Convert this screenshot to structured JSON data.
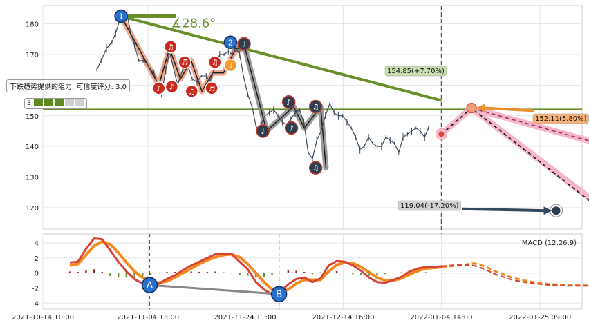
{
  "chart_data": [
    {
      "type": "line",
      "name": "price",
      "yticks": [
        120,
        130,
        140,
        150,
        160,
        170,
        180
      ],
      "ylim": [
        113,
        186
      ],
      "xlim": [
        0,
        100
      ],
      "grid": true,
      "price_series": [
        [
          10.0,
          165
        ],
        [
          10.8,
          168
        ],
        [
          11.8,
          172
        ],
        [
          12.8,
          174
        ],
        [
          13.5,
          177
        ],
        [
          14.2,
          181
        ],
        [
          14.9,
          183
        ],
        [
          15.6,
          183
        ],
        [
          16.3,
          177
        ],
        [
          17,
          173
        ],
        [
          17.8,
          168
        ],
        [
          18.6,
          168
        ],
        [
          19.3,
          167
        ],
        [
          20,
          165
        ],
        [
          20.6,
          164
        ],
        [
          21.3,
          160
        ],
        [
          22,
          157
        ],
        [
          22.8,
          165
        ],
        [
          23.5,
          171
        ],
        [
          24.3,
          165
        ],
        [
          25,
          160
        ],
        [
          25.9,
          165
        ],
        [
          26.8,
          167
        ],
        [
          27.7,
          162
        ],
        [
          28.6,
          161
        ],
        [
          29.4,
          163
        ],
        [
          30.3,
          163
        ],
        [
          31,
          161
        ],
        [
          31.9,
          166
        ],
        [
          32.8,
          170
        ],
        [
          33.6,
          170
        ],
        [
          34.4,
          171
        ],
        [
          35.1,
          170
        ],
        [
          35.8,
          172
        ],
        [
          36.5,
          170
        ],
        [
          37.2,
          163
        ],
        [
          38,
          157
        ],
        [
          38.8,
          153
        ],
        [
          39.6,
          146
        ],
        [
          40.4,
          147
        ],
        [
          41.2,
          150
        ],
        [
          42,
          151
        ],
        [
          42.8,
          152
        ],
        [
          43.6,
          150
        ],
        [
          44.4,
          148
        ],
        [
          45.2,
          147
        ],
        [
          46,
          149
        ],
        [
          46.8,
          151
        ],
        [
          47.6,
          152
        ],
        [
          48.4,
          148
        ],
        [
          49.2,
          138
        ],
        [
          50,
          136
        ],
        [
          50.8,
          142
        ],
        [
          51.6,
          145
        ],
        [
          52.4,
          150
        ],
        [
          53.2,
          154
        ],
        [
          54,
          151
        ],
        [
          54.8,
          150
        ],
        [
          55.6,
          150
        ],
        [
          56.4,
          148
        ],
        [
          57.2,
          146
        ],
        [
          58,
          143
        ],
        [
          58.8,
          139
        ],
        [
          59.6,
          140
        ],
        [
          60.4,
          143
        ],
        [
          61.2,
          141
        ],
        [
          62,
          140
        ],
        [
          62.8,
          140
        ],
        [
          63.6,
          143
        ],
        [
          64.4,
          142
        ],
        [
          65.2,
          141
        ],
        [
          66,
          138
        ],
        [
          66.8,
          143
        ],
        [
          67.6,
          144
        ],
        [
          68.4,
          145
        ],
        [
          69.2,
          146
        ],
        [
          70,
          145
        ],
        [
          70.8,
          143
        ],
        [
          71.5,
          146
        ]
      ],
      "xtick_labels": [
        "2021-10-14 10:00",
        "2021-11-04 13:00",
        "2021-11-24 11:00",
        "2021-12-14 16:00",
        "2022-01-04 14:00",
        "2022-01-25 09:00"
      ],
      "xtick_pos": [
        0,
        19.5,
        37.5,
        55.7,
        73.9,
        92.2
      ],
      "support_level": 152.11,
      "support_label": "152.11(5.80%)",
      "target_high": 154.85,
      "target_high_label": "154.85(+7.70%)",
      "target_low": 119.04,
      "target_low_label": "119.04(-17.20%)",
      "trend_angle_label": "∡28.6°",
      "resistance_label": "下跌趋势提供的阻力: 可信度评分: 3.0",
      "confidence_score": "3",
      "confidence_filled": 3,
      "confidence_total": 5,
      "trend_line": [
        [
          14.5,
          182.5
        ],
        [
          73.9,
          155
        ]
      ],
      "projection_dashed": [
        [
          73.9,
          144
        ],
        [
          79.5,
          152.5
        ],
        [
          103,
          120
        ]
      ],
      "projection_upper": [
        [
          79.5,
          152.5
        ],
        [
          103,
          141
        ]
      ],
      "projection_lower": [
        [
          79.5,
          152.5
        ],
        [
          103,
          121
        ]
      ],
      "pattern_lines": [
        {
          "color": "#e8967a",
          "points": [
            [
              14.5,
              182.5
            ],
            [
              21.5,
              160
            ],
            [
              23.5,
              172
            ],
            [
              25.5,
              162
            ],
            [
              27.5,
              168
            ],
            [
              29.5,
              158
            ],
            [
              31.5,
              164
            ],
            [
              33.5,
              164
            ],
            [
              35.5,
              171
            ],
            [
              37.5,
              172
            ]
          ]
        },
        {
          "color": "#8a8a8a",
          "points": [
            [
              35.5,
              172
            ],
            [
              37.5,
              172
            ],
            [
              41.5,
              145
            ],
            [
              46.5,
              153
            ],
            [
              48.5,
              146
            ],
            [
              51.5,
              153
            ],
            [
              52.5,
              133
            ]
          ]
        }
      ],
      "markers": [
        {
          "label": "1",
          "x": 14.5,
          "y": 182.5,
          "kind": "blue"
        },
        {
          "label": "2",
          "x": 34.8,
          "y": 174,
          "kind": "blue"
        },
        {
          "label": "♩",
          "x": 37.3,
          "y": 173.5,
          "kind": "dark"
        },
        {
          "label": "♪",
          "x": 21.5,
          "y": 159,
          "kind": "red"
        },
        {
          "label": "♫",
          "x": 23.7,
          "y": 172.5,
          "kind": "red"
        },
        {
          "label": "♪",
          "x": 23.9,
          "y": 159.5,
          "kind": "red"
        },
        {
          "label": "♬",
          "x": 26.3,
          "y": 167.5,
          "kind": "red"
        },
        {
          "label": "♫",
          "x": 27.6,
          "y": 158,
          "kind": "red"
        },
        {
          "label": "♬",
          "x": 31.3,
          "y": 159,
          "kind": "red"
        },
        {
          "label": "♫",
          "x": 31.9,
          "y": 167.5,
          "kind": "red"
        },
        {
          "label": "♩",
          "x": 34.8,
          "y": 166.5,
          "kind": "orange"
        },
        {
          "label": "♩",
          "x": 40.8,
          "y": 145,
          "kind": "dark"
        },
        {
          "label": "♪",
          "x": 45.6,
          "y": 154.5,
          "kind": "dark"
        },
        {
          "label": "♪",
          "x": 46.1,
          "y": 146,
          "kind": "dark"
        },
        {
          "label": "♫",
          "x": 50.6,
          "y": 153,
          "kind": "dark"
        },
        {
          "label": "♫",
          "x": 50.6,
          "y": 133,
          "kind": "dark"
        }
      ]
    },
    {
      "type": "line",
      "name": "macd",
      "label": "MACD (12,26,9)",
      "yticks": [
        -4,
        -2,
        0,
        2,
        4
      ],
      "ylim": [
        -4.8,
        5.2
      ],
      "xlim": [
        0,
        100
      ],
      "macd_line": [
        [
          5,
          1.4
        ],
        [
          6.5,
          1.5
        ],
        [
          8,
          3.2
        ],
        [
          9.5,
          4.6
        ],
        [
          11,
          4.5
        ],
        [
          12.5,
          3.0
        ],
        [
          14,
          1.5
        ],
        [
          15.5,
          0.2
        ],
        [
          17,
          -0.8
        ],
        [
          18.5,
          -1.4
        ],
        [
          20,
          -1.6
        ],
        [
          21.5,
          -1.4
        ],
        [
          23,
          -0.8
        ],
        [
          24.5,
          -0.3
        ],
        [
          26,
          0.4
        ],
        [
          27.5,
          1.0
        ],
        [
          29,
          1.5
        ],
        [
          30.5,
          2.0
        ],
        [
          32,
          2.5
        ],
        [
          33.5,
          2.6
        ],
        [
          35,
          2.5
        ],
        [
          36.5,
          1.5
        ],
        [
          38,
          0.5
        ],
        [
          39.5,
          -1.2
        ],
        [
          41,
          -2.2
        ],
        [
          42.5,
          -2.8
        ],
        [
          44,
          -2.5
        ],
        [
          45.5,
          -1.5
        ],
        [
          47,
          -0.8
        ],
        [
          48.5,
          -0.6
        ],
        [
          50,
          -1.2
        ],
        [
          51.5,
          -0.7
        ],
        [
          53,
          1.0
        ],
        [
          54.5,
          1.6
        ],
        [
          56,
          1.5
        ],
        [
          57.5,
          1.0
        ],
        [
          59,
          0.3
        ],
        [
          60.5,
          -0.6
        ],
        [
          62,
          -1.2
        ],
        [
          63.5,
          -1.3
        ],
        [
          65,
          -0.9
        ],
        [
          66.5,
          -0.5
        ],
        [
          68,
          0.2
        ],
        [
          69.5,
          0.6
        ],
        [
          71,
          0.8
        ],
        [
          72.5,
          0.8
        ],
        [
          74,
          0.9
        ]
      ],
      "signal_line": [
        [
          5,
          1.0
        ],
        [
          6.5,
          1.2
        ],
        [
          8,
          2.4
        ],
        [
          9.5,
          3.6
        ],
        [
          11,
          4.2
        ],
        [
          12.5,
          3.8
        ],
        [
          14,
          2.7
        ],
        [
          15.5,
          1.4
        ],
        [
          17,
          0.2
        ],
        [
          18.5,
          -0.6
        ],
        [
          20,
          -1.1
        ],
        [
          21.5,
          -1.3
        ],
        [
          23,
          -1.1
        ],
        [
          24.5,
          -0.6
        ],
        [
          26,
          0.0
        ],
        [
          27.5,
          0.6
        ],
        [
          29,
          1.2
        ],
        [
          30.5,
          1.7
        ],
        [
          32,
          2.1
        ],
        [
          33.5,
          2.4
        ],
        [
          35,
          2.5
        ],
        [
          36.5,
          2.1
        ],
        [
          38,
          1.2
        ],
        [
          39.5,
          0.0
        ],
        [
          41,
          -1.2
        ],
        [
          42.5,
          -2.2
        ],
        [
          44,
          -2.6
        ],
        [
          45.5,
          -2.2
        ],
        [
          47,
          -1.4
        ],
        [
          48.5,
          -0.9
        ],
        [
          50,
          -0.9
        ],
        [
          51.5,
          -0.9
        ],
        [
          53,
          0.2
        ],
        [
          54.5,
          1.1
        ],
        [
          56,
          1.4
        ],
        [
          57.5,
          1.3
        ],
        [
          59,
          0.8
        ],
        [
          60.5,
          0.1
        ],
        [
          62,
          -0.6
        ],
        [
          63.5,
          -1.0
        ],
        [
          65,
          -1.0
        ],
        [
          66.5,
          -0.7
        ],
        [
          68,
          -0.2
        ],
        [
          69.5,
          0.3
        ],
        [
          71,
          0.6
        ],
        [
          72.5,
          0.7
        ],
        [
          74,
          0.8
        ]
      ],
      "projection_macd": [
        [
          74,
          0.9
        ],
        [
          77,
          1.1
        ],
        [
          80,
          1.0
        ],
        [
          82,
          0.5
        ],
        [
          84,
          -0.2
        ],
        [
          87,
          -0.9
        ],
        [
          90,
          -1.3
        ],
        [
          94,
          -1.6
        ],
        [
          98,
          -1.7
        ],
        [
          103,
          -1.7
        ]
      ],
      "projection_signal": [
        [
          74,
          0.8
        ],
        [
          77,
          1.0
        ],
        [
          80,
          1.3
        ],
        [
          82,
          0.9
        ],
        [
          84,
          0.2
        ],
        [
          87,
          -0.6
        ],
        [
          90,
          -1.1
        ],
        [
          94,
          -1.5
        ],
        [
          98,
          -1.6
        ],
        [
          103,
          -1.7
        ]
      ],
      "cross_markers": [
        {
          "label": "A",
          "x": 19.8,
          "y": -1.6
        },
        {
          "label": "B",
          "x": 43.8,
          "y": -2.8
        }
      ]
    }
  ],
  "colors": {
    "price": "#3a4a5e",
    "trend": "#6a8f2a",
    "support": "#6a8f2a",
    "proj_pink": "#f4b6c8",
    "macd_line": "#d64234",
    "signal_line": "#f28a1e",
    "hist_pos": "#9b2a22",
    "hist_neg": "#6a8f2a",
    "blue_marker": "#2a6fc9",
    "red_marker": "#cc2a1e",
    "dark_marker": "#2e3d4f",
    "orange_marker": "#f39b2e",
    "orange_label_bg": "#f7b27a",
    "green_label_bg": "#c9dfb0",
    "gray_label_bg": "#d3d3d3",
    "cursor_line": "#4a5a6a"
  }
}
